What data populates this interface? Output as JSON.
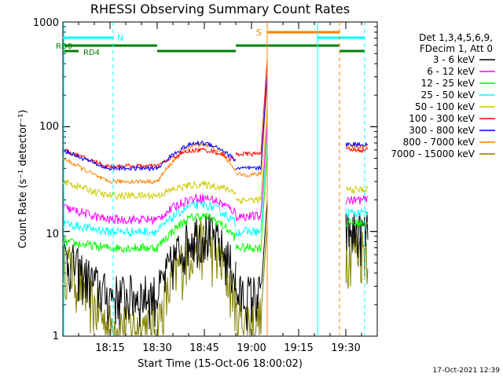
{
  "chart_data": {
    "type": "line",
    "title": "RHESSI Observing Summary Count Rates",
    "xlabel": "Start Time (15-Oct-06 18:00:02)",
    "ylabel": "Count Rate (s⁻¹ detector⁻¹)",
    "x_ticks": [
      "18:15",
      "18:30",
      "18:45",
      "19:00",
      "19:15",
      "19:30"
    ],
    "y_ticks": [
      "1",
      "10",
      "100",
      "1000"
    ],
    "xlim_minutes": [
      0,
      100
    ],
    "ylim": [
      1,
      1000
    ],
    "yscale": "log",
    "grid": false,
    "legend_position": "right",
    "legend_header": [
      "Det 1,3,4,5,6,9,",
      "FDecim 1, Att 0"
    ],
    "series": [
      {
        "name": "3 - 6 keV",
        "color": "#000000",
        "levels": [
          6,
          2.5,
          10,
          2.5,
          10
        ]
      },
      {
        "name": "6 - 12 keV",
        "color": "#ff00ff",
        "levels": [
          17,
          13,
          21,
          14,
          20
        ]
      },
      {
        "name": "12 - 25 keV",
        "color": "#00ff00",
        "levels": [
          8,
          7,
          14,
          7,
          12
        ]
      },
      {
        "name": "25 - 50 keV",
        "color": "#00ffff",
        "levels": [
          12,
          10,
          18,
          10,
          15
        ]
      },
      {
        "name": "50 - 100 keV",
        "color": "#cccc00",
        "levels": [
          30,
          22,
          28,
          20,
          25
        ]
      },
      {
        "name": "100 - 300 keV",
        "color": "#ff0000",
        "levels": [
          60,
          42,
          60,
          55,
          60
        ]
      },
      {
        "name": "300 - 800 keV",
        "color": "#0000ff",
        "levels": [
          60,
          40,
          70,
          40,
          68
        ]
      },
      {
        "name": "800 - 7000 keV",
        "color": "#ff8000",
        "levels": [
          50,
          30,
          68,
          35,
          65
        ]
      },
      {
        "name": "7000 - 15000 keV",
        "color": "#808000",
        "levels": [
          6,
          1.3,
          8,
          1.5,
          7
        ]
      }
    ],
    "annotations": {
      "flags": [
        {
          "label": "N",
          "color": "#00ffff"
        },
        {
          "label": "S",
          "color": "#ff8000"
        },
        {
          "label": "RD0",
          "color": "#008000"
        },
        {
          "label": "RD4",
          "color": "#008000"
        }
      ],
      "footer_timestamp": "17-Oct-2021 12:39"
    }
  }
}
